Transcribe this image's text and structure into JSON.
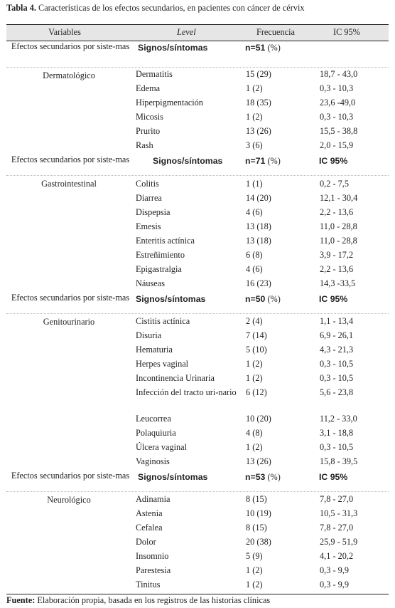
{
  "caption": {
    "label": "Tabla 4.",
    "text": " Características de los efectos secundarios, en pacientes con cáncer de cérvix"
  },
  "header": {
    "variables": "Variables",
    "level": "Level",
    "frecuencia": "Frecuencia",
    "ic": "IC 95%"
  },
  "sections": [
    {
      "label": "Efectos secundarios por siste-mas",
      "signos": "Signos/síntomas",
      "n_bold": "n=51",
      "n_pct": " (%)",
      "ic": "",
      "system": "Dermatológico",
      "rows": [
        {
          "name": "Dermatitis",
          "freq": "15 (29)",
          "ic": "18,7 - 43,0"
        },
        {
          "name": "Edema",
          "freq": "1 (2)",
          "ic": "0,3 - 10,3"
        },
        {
          "name": "Hiperpigmentación",
          "freq": "18 (35)",
          "ic": "23,6 -49,0"
        },
        {
          "name": "Micosis",
          "freq": "1 (2)",
          "ic": "0,3 - 10,3"
        },
        {
          "name": "Prurito",
          "freq": "13 (26)",
          "ic": "15,5 - 38,8"
        },
        {
          "name": "Rash",
          "freq": "3 (6)",
          "ic": "2,0 - 15,9"
        }
      ]
    },
    {
      "label": "Efectos secundarios por siste-mas",
      "signos": "Signos/síntomas",
      "n_bold": "n=71",
      "n_pct": " (%)",
      "ic": "IC 95%",
      "system": "Gastrointestinal",
      "rows": [
        {
          "name": "Colitis",
          "freq": "1 (1)",
          "ic": "0,2 - 7,5"
        },
        {
          "name": "Diarrea",
          "freq": "14 (20)",
          "ic": "12,1 - 30,4"
        },
        {
          "name": "Dispepsia",
          "freq": "4 (6)",
          "ic": "2,2 - 13,6"
        },
        {
          "name": "Emesis",
          "freq": "13 (18)",
          "ic": "11,0 - 28,8"
        },
        {
          "name": "Enteritis actínica",
          "freq": "13 (18)",
          "ic": "11,0 - 28,8"
        },
        {
          "name": "Estreñimiento",
          "freq": "6 (8)",
          "ic": "3,9 - 17,2"
        },
        {
          "name": "Epigastralgia",
          "freq": "4 (6)",
          "ic": "2,2 - 13,6"
        },
        {
          "name": "Náuseas",
          "freq": "16 (23)",
          "ic": "14,3 -33,5"
        }
      ]
    },
    {
      "label": "Efectos secundarios por siste-mas",
      "signos": "Signos/síntomas",
      "n_bold": "n=50",
      "n_pct": " (%)",
      "ic": "IC 95%",
      "system": "Genitourinario",
      "rows": [
        {
          "name": "Cistitis actínica",
          "freq": "2 (4)",
          "ic": "1,1 - 13,4"
        },
        {
          "name": "Disuria",
          "freq": "7 (14)",
          "ic": "6,9 - 26,1"
        },
        {
          "name": "Hematuria",
          "freq": "5 (10)",
          "ic": "4,3 - 21,3"
        },
        {
          "name": "Herpes vaginal",
          "freq": "1 (2)",
          "ic": "0,3 - 10,5"
        },
        {
          "name": "Incontinencia Urinaria",
          "freq": "1 (2)",
          "ic": "0,3 - 10,5"
        },
        {
          "name": "Infección del tracto uri-nario",
          "freq": "6 (12)",
          "ic": "5,6 - 23,8"
        },
        {
          "name": "Leucorrea",
          "freq": "10 (20)",
          "ic": "11,2 - 33,0"
        },
        {
          "name": "Polaquiuria",
          "freq": "4 (8)",
          "ic": "3,1 - 18,8"
        },
        {
          "name": "Úlcera vaginal",
          "freq": "1 (2)",
          "ic": "0,3 - 10,5"
        },
        {
          "name": "Vaginosis",
          "freq": "13 (26)",
          "ic": "15,8 - 39,5"
        }
      ]
    },
    {
      "label": "Efectos secundarios por siste-mas",
      "signos": "Signos/síntomas",
      "n_bold": "n=53",
      "n_pct": " (%)",
      "ic": "IC 95%",
      "system": "Neurológico",
      "rows": [
        {
          "name": "Adinamia",
          "freq": "8 (15)",
          "ic": "7,8 - 27,0"
        },
        {
          "name": "Astenia",
          "freq": "10 (19)",
          "ic": "10,5 - 31,3"
        },
        {
          "name": "Cefalea",
          "freq": "8 (15)",
          "ic": "7,8 - 27,0"
        },
        {
          "name": "Dolor",
          "freq": "20 (38)",
          "ic": "25,9 - 51,9"
        },
        {
          "name": "Insomnio",
          "freq": "5 (9)",
          "ic": "4,1 - 20,2"
        },
        {
          "name": "Parestesia",
          "freq": "1 (2)",
          "ic": "0,3 - 9,9"
        },
        {
          "name": "Tinitus",
          "freq": "1 (2)",
          "ic": "0,3 - 9,9"
        }
      ]
    }
  ],
  "footer": {
    "label": "Fuente:",
    "text": " Elaboración propia, basada en los registros de las historias clínicas"
  }
}
